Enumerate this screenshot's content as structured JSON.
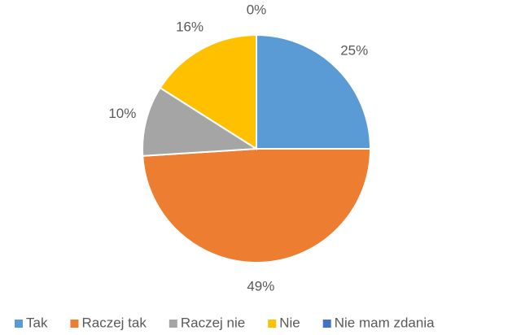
{
  "chart_data": {
    "type": "pie",
    "categories": [
      "Tak",
      "Raczej tak",
      "Raczej nie",
      "Nie",
      "Nie mam zdania"
    ],
    "values": [
      25,
      49,
      10,
      16,
      0
    ],
    "value_labels": [
      "25%",
      "49%",
      "10%",
      "16%",
      "0%"
    ],
    "colors": [
      "#5b9bd5",
      "#ed7d31",
      "#a5a5a5",
      "#ffc000",
      "#4472c4"
    ],
    "legend": "bottom"
  }
}
